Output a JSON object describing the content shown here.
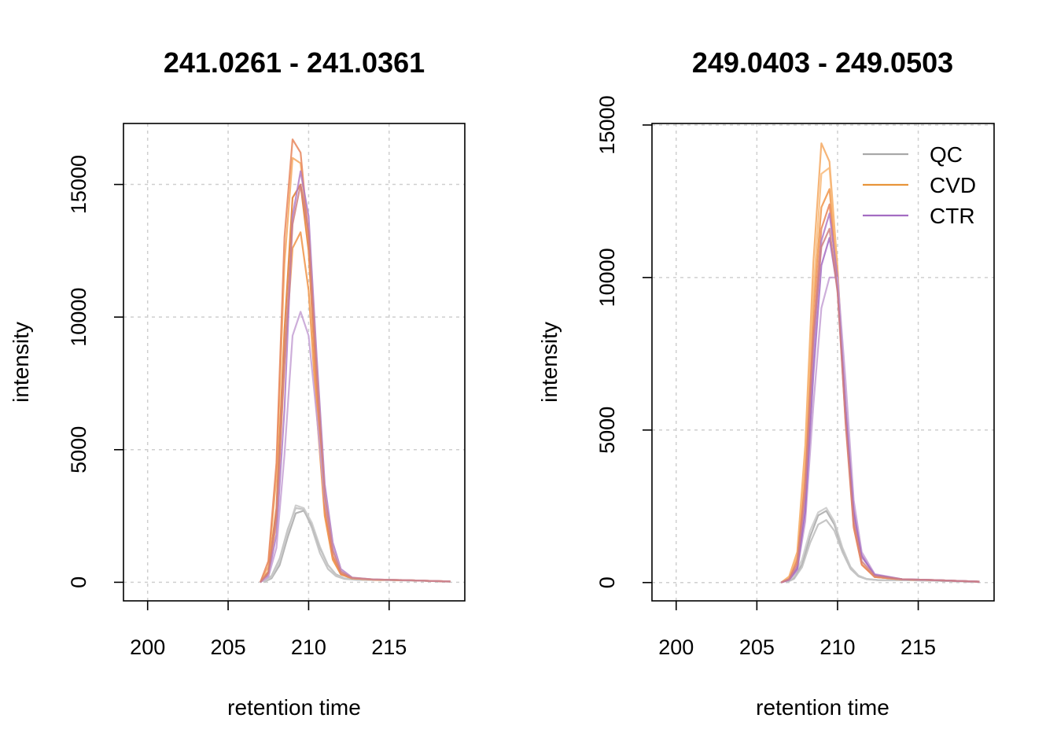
{
  "chart_data": [
    {
      "type": "line",
      "title": "241.0261 - 241.0361",
      "xlabel": "retention time",
      "ylabel": "intensity",
      "xlim": [
        198.5,
        219.7
      ],
      "ylim": [
        -700,
        17300
      ],
      "xticks": [
        200,
        205,
        210,
        215
      ],
      "yticks": [
        0,
        5000,
        10000,
        15000
      ],
      "grid": true,
      "legend": null,
      "series": [
        {
          "group": "QC",
          "color": "#a8a8a8",
          "x": [
            207.2,
            207.7,
            208.2,
            208.7,
            209.2,
            209.7,
            210.2,
            210.7,
            211.2,
            211.7,
            212.2,
            213.0,
            215.0,
            217.0,
            218.8
          ],
          "y": [
            0,
            150,
            650,
            1700,
            2600,
            2700,
            2150,
            1300,
            650,
            300,
            150,
            100,
            80,
            60,
            20
          ]
        },
        {
          "group": "QC",
          "color": "#bcbcbc",
          "x": [
            207.2,
            207.7,
            208.2,
            208.7,
            209.2,
            209.7,
            210.2,
            210.7,
            211.2,
            211.7,
            212.2,
            213.0,
            215.0,
            217.0,
            218.8
          ],
          "y": [
            0,
            250,
            900,
            2000,
            2800,
            2750,
            2050,
            1100,
            500,
            230,
            130,
            90,
            80,
            60,
            20
          ]
        },
        {
          "group": "QC",
          "color": "#c8c8c8",
          "x": [
            207.2,
            207.7,
            208.2,
            208.7,
            209.2,
            209.7,
            210.2,
            210.7,
            211.2,
            211.7,
            212.2,
            213.0,
            215.0,
            217.0,
            218.8
          ],
          "y": [
            0,
            200,
            800,
            1900,
            2900,
            2800,
            2250,
            1350,
            650,
            280,
            150,
            100,
            80,
            60,
            20
          ]
        },
        {
          "group": "CVD",
          "color": "#e07b2e",
          "x": [
            207.0,
            207.5,
            208.0,
            208.5,
            209.0,
            209.5,
            210.0,
            210.5,
            211.0,
            211.5,
            212.0,
            212.7,
            214.0,
            216.0,
            218.8
          ],
          "y": [
            0,
            400,
            2800,
            9500,
            14500,
            15000,
            12500,
            7000,
            2600,
            900,
            300,
            150,
            100,
            80,
            30
          ]
        },
        {
          "group": "CVD",
          "color": "#f09448",
          "x": [
            207.0,
            207.5,
            208.0,
            208.5,
            209.0,
            209.5,
            210.0,
            210.5,
            211.0,
            211.5,
            212.0,
            212.7,
            214.0,
            216.0,
            218.8
          ],
          "y": [
            0,
            300,
            2300,
            8200,
            12600,
            13200,
            11000,
            6400,
            2500,
            850,
            300,
            150,
            100,
            80,
            30
          ]
        },
        {
          "group": "CVD",
          "color": "#f5a860",
          "x": [
            207.0,
            207.5,
            208.0,
            208.5,
            209.0,
            209.5,
            210.0,
            210.5,
            211.0,
            211.5,
            212.0,
            212.7,
            214.0,
            216.0,
            218.8
          ],
          "y": [
            0,
            600,
            4000,
            12000,
            16000,
            15800,
            12800,
            7200,
            2700,
            950,
            320,
            160,
            100,
            80,
            30
          ]
        },
        {
          "group": "CVD",
          "color": "#e8855a",
          "x": [
            207.0,
            207.5,
            208.0,
            208.5,
            209.0,
            209.5,
            210.0,
            210.5,
            211.0,
            211.5,
            212.0,
            212.7,
            214.0,
            216.0,
            218.8
          ],
          "y": [
            0,
            800,
            4500,
            13000,
            16700,
            16200,
            13000,
            7500,
            2800,
            1000,
            330,
            160,
            100,
            80,
            30
          ]
        },
        {
          "group": "CTR",
          "color": "#b07cc6",
          "x": [
            207.0,
            207.5,
            208.0,
            208.5,
            209.0,
            209.5,
            210.0,
            210.5,
            211.0,
            211.5,
            212.0,
            212.7,
            214.0,
            216.0,
            218.8
          ],
          "y": [
            0,
            250,
            1800,
            6500,
            13800,
            15500,
            13800,
            8500,
            3700,
            1500,
            500,
            180,
            110,
            80,
            30
          ]
        },
        {
          "group": "CTR",
          "color": "#c4a0d4",
          "x": [
            207.0,
            207.5,
            208.0,
            208.5,
            209.0,
            209.5,
            210.0,
            210.5,
            211.0,
            211.5,
            212.0,
            212.7,
            214.0,
            216.0,
            218.8
          ],
          "y": [
            0,
            200,
            1300,
            4800,
            9300,
            10200,
            9300,
            6300,
            3100,
            1300,
            450,
            170,
            110,
            80,
            30
          ]
        },
        {
          "group": "CTR",
          "color": "#d08080",
          "x": [
            207.0,
            207.5,
            208.0,
            208.5,
            209.0,
            209.5,
            210.0,
            210.5,
            211.0,
            211.5,
            212.0,
            212.7,
            214.0,
            216.0,
            218.8
          ],
          "y": [
            0,
            350,
            2500,
            8500,
            13500,
            15000,
            13200,
            8000,
            3300,
            1200,
            400,
            170,
            110,
            80,
            30
          ]
        }
      ]
    },
    {
      "type": "line",
      "title": "249.0403 - 249.0503",
      "xlabel": "retention time",
      "ylabel": "intensity",
      "xlim": [
        198.5,
        219.7
      ],
      "ylim": [
        -600,
        15050
      ],
      "xticks": [
        200,
        205,
        210,
        215
      ],
      "yticks": [
        0,
        5000,
        10000,
        15000
      ],
      "grid": true,
      "legend": {
        "position": "top-right",
        "items": [
          {
            "label": "QC",
            "color": "#a8a8a8"
          },
          {
            "label": "CVD",
            "color": "#e8943a"
          },
          {
            "label": "CTR",
            "color": "#a46cc2"
          }
        ]
      },
      "series": [
        {
          "group": "QC",
          "color": "#a8a8a8",
          "x": [
            206.8,
            207.3,
            207.8,
            208.3,
            208.8,
            209.3,
            209.8,
            210.3,
            210.8,
            211.3,
            211.8,
            212.5,
            214.0,
            216.0,
            218.8
          ],
          "y": [
            0,
            150,
            600,
            1500,
            2200,
            2350,
            1900,
            1100,
            500,
            220,
            120,
            80,
            80,
            60,
            20
          ]
        },
        {
          "group": "QC",
          "color": "#bcbcbc",
          "x": [
            206.8,
            207.3,
            207.8,
            208.3,
            208.8,
            209.3,
            209.8,
            210.3,
            210.8,
            211.3,
            211.8,
            212.5,
            214.0,
            216.0,
            218.8
          ],
          "y": [
            0,
            120,
            500,
            1300,
            1900,
            2050,
            1700,
            1000,
            450,
            200,
            110,
            80,
            80,
            60,
            20
          ]
        },
        {
          "group": "QC",
          "color": "#c8c8c8",
          "x": [
            206.8,
            207.3,
            207.8,
            208.3,
            208.8,
            209.3,
            209.8,
            210.3,
            210.8,
            211.3,
            211.8,
            212.5,
            214.0,
            216.0,
            218.8
          ],
          "y": [
            0,
            200,
            750,
            1700,
            2300,
            2450,
            2000,
            1150,
            520,
            230,
            120,
            80,
            80,
            60,
            20
          ]
        },
        {
          "group": "CVD",
          "color": "#f5a860",
          "x": [
            206.5,
            207.0,
            207.5,
            208.0,
            208.5,
            209.0,
            209.5,
            210.0,
            210.5,
            211.0,
            211.5,
            212.3,
            214.0,
            216.0,
            218.8
          ],
          "y": [
            0,
            200,
            1000,
            4500,
            10500,
            14400,
            13800,
            10300,
            5500,
            1900,
            600,
            180,
            100,
            80,
            30
          ]
        },
        {
          "group": "CVD",
          "color": "#f09448",
          "x": [
            206.5,
            207.0,
            207.5,
            208.0,
            208.5,
            209.0,
            209.5,
            210.0,
            210.5,
            211.0,
            211.5,
            212.3,
            214.0,
            216.0,
            218.8
          ],
          "y": [
            0,
            150,
            800,
            3800,
            9000,
            12300,
            12900,
            10000,
            5400,
            1850,
            600,
            180,
            100,
            80,
            30
          ]
        },
        {
          "group": "CVD",
          "color": "#f8b878",
          "x": [
            206.5,
            207.0,
            207.5,
            208.0,
            208.5,
            209.0,
            209.5,
            210.0,
            210.5,
            211.0,
            211.5,
            212.3,
            214.0,
            216.0,
            218.8
          ],
          "y": [
            0,
            170,
            900,
            4100,
            9500,
            13400,
            13600,
            10200,
            5500,
            1900,
            600,
            180,
            100,
            80,
            30
          ]
        },
        {
          "group": "CVD",
          "color": "#e8855a",
          "x": [
            206.5,
            207.0,
            207.5,
            208.0,
            208.5,
            209.0,
            209.5,
            210.0,
            210.5,
            211.0,
            211.5,
            212.3,
            214.0,
            216.0,
            218.8
          ],
          "y": [
            0,
            120,
            700,
            3300,
            8300,
            11600,
            12400,
            9700,
            5200,
            1800,
            580,
            180,
            100,
            80,
            30
          ]
        },
        {
          "group": "CTR",
          "color": "#b07cc6",
          "x": [
            206.5,
            207.0,
            207.5,
            208.0,
            208.5,
            209.0,
            209.5,
            210.0,
            210.5,
            211.0,
            211.5,
            212.3,
            214.0,
            216.0,
            218.8
          ],
          "y": [
            0,
            100,
            500,
            2600,
            7500,
            11200,
            12100,
            10000,
            5800,
            2400,
            900,
            250,
            110,
            80,
            30
          ]
        },
        {
          "group": "CTR",
          "color": "#c4a0d4",
          "x": [
            206.5,
            207.0,
            207.5,
            208.0,
            208.5,
            209.0,
            209.5,
            210.0,
            210.5,
            211.0,
            211.5,
            212.3,
            214.0,
            216.0,
            218.8
          ],
          "y": [
            0,
            80,
            400,
            2000,
            5800,
            9000,
            10000,
            10000,
            6600,
            2700,
            1000,
            280,
            110,
            80,
            30
          ]
        },
        {
          "group": "CTR",
          "color": "#a46cc2",
          "x": [
            206.5,
            207.0,
            207.5,
            208.0,
            208.5,
            209.0,
            209.5,
            210.0,
            210.5,
            211.0,
            211.5,
            212.3,
            214.0,
            216.0,
            218.8
          ],
          "y": [
            0,
            90,
            450,
            2300,
            6800,
            10400,
            11300,
            9600,
            5600,
            2300,
            850,
            250,
            110,
            80,
            30
          ]
        },
        {
          "group": "CTR",
          "color": "#d08080",
          "x": [
            206.5,
            207.0,
            207.5,
            208.0,
            208.5,
            209.0,
            209.5,
            210.0,
            210.5,
            211.0,
            211.5,
            212.3,
            214.0,
            216.0,
            218.8
          ],
          "y": [
            0,
            110,
            600,
            3000,
            8000,
            11000,
            11600,
            9500,
            5300,
            2000,
            700,
            220,
            110,
            80,
            30
          ]
        }
      ]
    }
  ]
}
